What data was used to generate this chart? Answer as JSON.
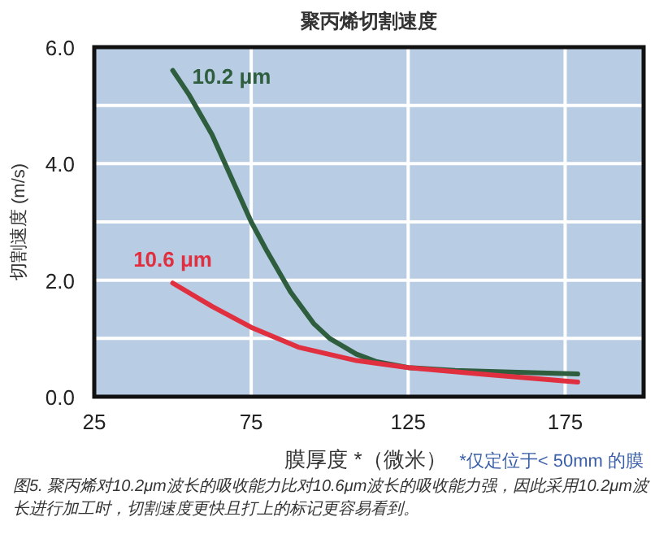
{
  "chart_data": {
    "type": "line",
    "title": "聚丙烯切割速度",
    "xlabel": "膜厚度 *（微米）",
    "ylabel": "切割速度 (m/s)",
    "annotations": [
      "*仅定位于< 50mm 的膜",
      "图5. 聚丙烯对10.2μm波长的吸收能力比对10.6μm波长的吸收能力强，因此采用10.2μm波长进行加工时，切割速度更快且打上的标记更容易看到。"
    ],
    "xlim": [
      25,
      200
    ],
    "ylim": [
      0,
      6
    ],
    "xticks": [
      25,
      75,
      125,
      175
    ],
    "yticks": [
      {
        "value": 0,
        "label": "0.0"
      },
      {
        "value": 1,
        "label": null
      },
      {
        "value": 2,
        "label": "2.0"
      },
      {
        "value": 3,
        "label": null
      },
      {
        "value": 4,
        "label": "4.0"
      },
      {
        "value": 5,
        "label": null
      },
      {
        "value": 6,
        "label": "6.0"
      }
    ],
    "grid": true,
    "marker": "none",
    "line_style": "solid",
    "series": [
      {
        "name": "10.2 μm",
        "color": "#2e5e3e",
        "x": [
          50,
          55,
          62.5,
          70,
          75,
          80,
          87.5,
          95,
          100,
          108.5,
          115,
          125,
          140,
          160,
          179
        ],
        "values": [
          5.6,
          5.2,
          4.5,
          3.6,
          3.0,
          2.5,
          1.8,
          1.25,
          1.0,
          0.73,
          0.6,
          0.5,
          0.45,
          0.42,
          0.39
        ]
      },
      {
        "name": "10.6 μm",
        "color": "#e03040",
        "x": [
          50,
          62.5,
          75,
          90,
          108.5,
          125,
          150,
          179
        ],
        "values": [
          1.95,
          1.55,
          1.19,
          0.85,
          0.62,
          0.5,
          0.38,
          0.25
        ]
      }
    ]
  }
}
